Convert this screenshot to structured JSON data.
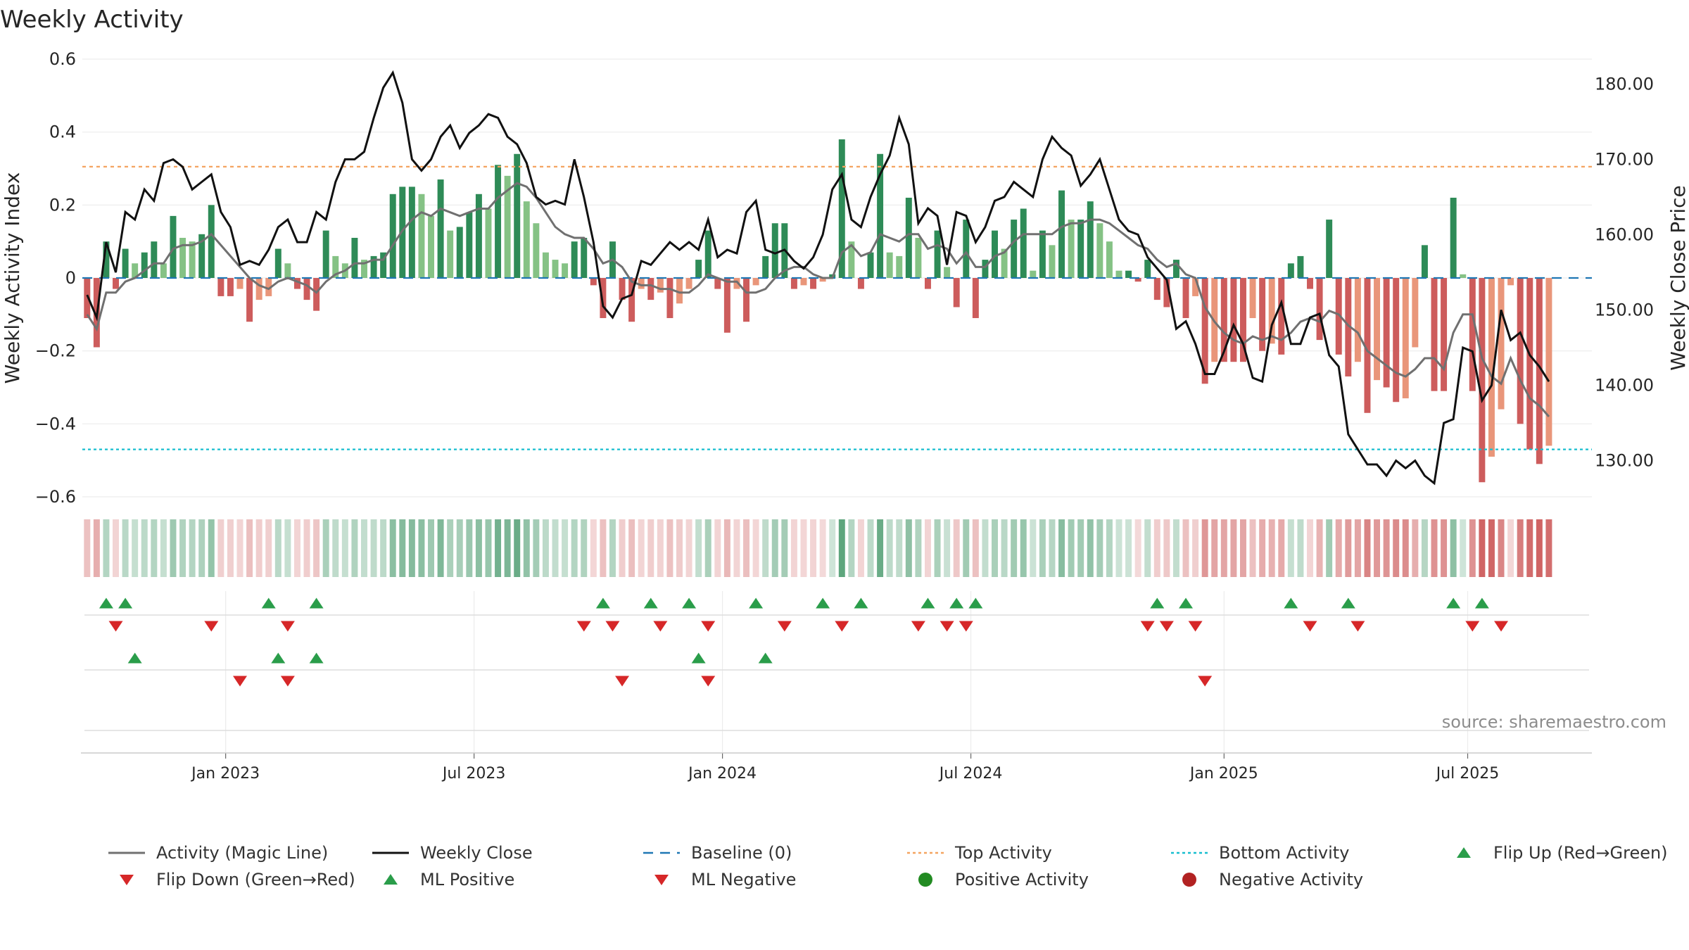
{
  "title": "Weekly Activity",
  "source_note": "source: sharemaestro.com",
  "colors": {
    "pos_strong": "#2e8b57",
    "pos_light": "#85c285",
    "neg_strong": "#cd5c5c",
    "neg_light": "#e9967a",
    "magic": "#707070",
    "close": "#111111",
    "baseline": "#1f77b4",
    "top": "#f4a460",
    "bottom": "#17becf",
    "flip_up": "#2a9d4a",
    "flip_down": "#d62728",
    "ml_pos": "#2a9d4a",
    "ml_neg": "#d62728",
    "pos_dot": "#228b22",
    "neg_dot": "#b22222"
  },
  "legend": [
    {
      "key": "magic",
      "label": "Activity (Magic Line)"
    },
    {
      "key": "close",
      "label": "Weekly Close"
    },
    {
      "key": "baseline",
      "label": "Baseline (0)"
    },
    {
      "key": "top",
      "label": "Top Activity"
    },
    {
      "key": "bottom",
      "label": "Bottom Activity"
    },
    {
      "key": "flip_up",
      "label": "Flip Up (Red→Green)"
    },
    {
      "key": "flip_down",
      "label": "Flip Down (Green→Red)"
    },
    {
      "key": "ml_pos",
      "label": "ML Positive"
    },
    {
      "key": "ml_neg",
      "label": "ML Negative"
    },
    {
      "key": "pos_dot",
      "label": "Positive Activity"
    },
    {
      "key": "neg_dot",
      "label": "Negative Activity"
    }
  ],
  "chart_data": {
    "type": "bar",
    "title": "Weekly Activity",
    "ylabel": "Weekly Activity Index",
    "y2label": "Weekly Close Price",
    "ylim": [
      -0.6,
      0.6
    ],
    "yticks": [
      0.6,
      0.4,
      0.2,
      0,
      -0.2,
      -0.4,
      -0.6
    ],
    "ytick_labels": [
      "0.6",
      "0.4",
      "0.2",
      "0",
      "−0.2",
      "−0.4",
      "−0.6"
    ],
    "y2lim": [
      125.2,
      183.3
    ],
    "y2ticks": [
      180,
      170,
      160,
      150,
      140,
      130
    ],
    "y2tick_labels": [
      "180.00",
      "170.00",
      "160.00",
      "150.00",
      "140.00",
      "130.00"
    ],
    "top_activity": 0.305,
    "bottom_activity": -0.47,
    "baseline": 0,
    "x_range_weeks": [
      0,
      157
    ],
    "month_ticks": [
      {
        "week": 14.5,
        "label": "Jan 2023"
      },
      {
        "week": 40.5,
        "label": "Jul 2023"
      },
      {
        "week": 66.5,
        "label": "Jan 2024"
      },
      {
        "week": 92.5,
        "label": "Jul 2024"
      },
      {
        "week": 119,
        "label": "Jan 2025"
      },
      {
        "week": 144.5,
        "label": "Jul 2025"
      }
    ],
    "activity": [
      -0.11,
      -0.19,
      0.1,
      -0.03,
      0.08,
      0.04,
      0.07,
      0.1,
      0.04,
      0.17,
      0.11,
      0.1,
      0.12,
      0.2,
      -0.05,
      -0.05,
      -0.03,
      -0.12,
      -0.06,
      -0.05,
      0.08,
      0.04,
      -0.03,
      -0.06,
      -0.09,
      0.13,
      0.06,
      0.04,
      0.11,
      0.05,
      0.06,
      0.07,
      0.23,
      0.25,
      0.25,
      0.23,
      0.17,
      0.27,
      0.13,
      0.14,
      0.18,
      0.23,
      0.19,
      0.31,
      0.28,
      0.34,
      0.21,
      0.15,
      0.07,
      0.05,
      0.04,
      0.1,
      0.11,
      -0.02,
      -0.11,
      0.1,
      -0.06,
      -0.12,
      -0.03,
      -0.06,
      -0.04,
      -0.11,
      -0.07,
      -0.03,
      0.05,
      0.13,
      -0.03,
      -0.15,
      -0.03,
      -0.12,
      -0.02,
      0.06,
      0.15,
      0.15,
      -0.03,
      -0.02,
      -0.03,
      -0.01,
      0.01,
      0.38,
      0.1,
      -0.03,
      0.07,
      0.34,
      0.07,
      0.06,
      0.22,
      0.11,
      -0.03,
      0.13,
      0.03,
      -0.08,
      0.16,
      -0.11,
      0.05,
      0.13,
      0.08,
      0.16,
      0.19,
      0.02,
      0.13,
      0.09,
      0.24,
      0.16,
      0.16,
      0.21,
      0.15,
      0.1,
      0.02,
      0.02,
      -0.01,
      0.05,
      -0.06,
      -0.08,
      0.05,
      -0.11,
      -0.05,
      -0.29,
      -0.23,
      -0.23,
      -0.23,
      -0.23,
      -0.11,
      -0.2,
      -0.18,
      -0.21,
      0.04,
      0.06,
      -0.03,
      -0.17,
      0.16,
      -0.21,
      -0.27,
      -0.23,
      -0.37,
      -0.28,
      -0.3,
      -0.34,
      -0.33,
      -0.19,
      0.09,
      -0.31,
      -0.31,
      0.22,
      0.01,
      -0.31,
      -0.56,
      -0.49,
      -0.36,
      -0.02,
      -0.4,
      -0.47,
      -0.51,
      -0.46
    ],
    "magic_line": [
      -0.1,
      -0.14,
      -0.04,
      -0.04,
      -0.01,
      0.0,
      0.02,
      0.04,
      0.04,
      0.08,
      0.09,
      0.09,
      0.1,
      0.12,
      0.09,
      0.06,
      0.03,
      0.0,
      -0.02,
      -0.03,
      -0.01,
      0.0,
      -0.01,
      -0.02,
      -0.04,
      -0.01,
      0.01,
      0.02,
      0.04,
      0.04,
      0.05,
      0.05,
      0.09,
      0.13,
      0.16,
      0.18,
      0.17,
      0.19,
      0.18,
      0.17,
      0.18,
      0.19,
      0.19,
      0.22,
      0.24,
      0.26,
      0.25,
      0.22,
      0.18,
      0.14,
      0.12,
      0.11,
      0.11,
      0.08,
      0.04,
      0.05,
      0.03,
      -0.01,
      -0.02,
      -0.02,
      -0.03,
      -0.03,
      -0.04,
      -0.04,
      -0.02,
      0.01,
      0.0,
      -0.01,
      -0.01,
      -0.04,
      -0.04,
      -0.03,
      0.0,
      0.02,
      0.03,
      0.03,
      0.01,
      0.0,
      0.0,
      0.07,
      0.09,
      0.06,
      0.07,
      0.12,
      0.11,
      0.1,
      0.12,
      0.12,
      0.08,
      0.09,
      0.08,
      0.04,
      0.07,
      0.03,
      0.03,
      0.06,
      0.07,
      0.1,
      0.12,
      0.12,
      0.12,
      0.12,
      0.14,
      0.15,
      0.15,
      0.16,
      0.16,
      0.15,
      0.13,
      0.11,
      0.09,
      0.08,
      0.05,
      0.03,
      0.04,
      0.01,
      0.0,
      -0.08,
      -0.12,
      -0.15,
      -0.17,
      -0.18,
      -0.16,
      -0.17,
      -0.16,
      -0.17,
      -0.15,
      -0.12,
      -0.11,
      -0.12,
      -0.09,
      -0.1,
      -0.13,
      -0.15,
      -0.2,
      -0.22,
      -0.24,
      -0.26,
      -0.27,
      -0.25,
      -0.22,
      -0.22,
      -0.25,
      -0.15,
      -0.1,
      -0.1,
      -0.22,
      -0.27,
      -0.29,
      -0.22,
      -0.28,
      -0.33,
      -0.35,
      -0.38
    ],
    "weekly_close": [
      152.0,
      149.0,
      159.0,
      155.0,
      163.0,
      162.0,
      166.0,
      164.5,
      169.5,
      170.0,
      169.0,
      166.0,
      167.0,
      168.0,
      163.0,
      161.0,
      156.0,
      156.5,
      156.0,
      158.0,
      161.0,
      162.0,
      159.0,
      159.0,
      163.0,
      162.0,
      167.0,
      170.0,
      170.0,
      171.0,
      175.5,
      179.5,
      181.5,
      177.5,
      170.0,
      168.5,
      170.0,
      173.0,
      174.5,
      171.5,
      173.5,
      174.5,
      176.0,
      175.5,
      173.0,
      172.0,
      169.5,
      165.0,
      164.0,
      164.5,
      164.0,
      170.0,
      165.0,
      159.0,
      150.5,
      149.0,
      151.5,
      152.0,
      156.5,
      156.0,
      157.5,
      159.0,
      158.0,
      159.0,
      158.0,
      162.0,
      157.0,
      158.0,
      157.5,
      163.0,
      164.5,
      158.0,
      157.5,
      158.0,
      156.5,
      155.5,
      157.0,
      160.0,
      166.0,
      168.0,
      162.0,
      161.0,
      165.0,
      168.0,
      170.5,
      175.5,
      172.0,
      161.5,
      163.5,
      162.5,
      156.0,
      163.0,
      162.5,
      159.0,
      161.0,
      164.5,
      165.0,
      167.0,
      166.0,
      165.0,
      170.0,
      173.0,
      171.5,
      170.5,
      166.5,
      168.0,
      170.0,
      166.0,
      162.0,
      160.5,
      160.0,
      157.0,
      155.5,
      154.0,
      147.5,
      148.5,
      145.5,
      141.5,
      141.5,
      144.5,
      148.0,
      145.5,
      141.0,
      140.5,
      148.0,
      151.0,
      145.5,
      145.5,
      149.0,
      149.5,
      144.0,
      142.5,
      133.5,
      131.5,
      129.5,
      129.5,
      128.0,
      130.0,
      129.0,
      130.0,
      128.0,
      127.0,
      135.0,
      135.5,
      145.0,
      144.5,
      138.0,
      140.0,
      150.0,
      146.0,
      147.0,
      144.0,
      142.5,
      140.5
    ],
    "flip_up": [
      2,
      4,
      19,
      24,
      54,
      59,
      63,
      70,
      77,
      81,
      88,
      91,
      93,
      112,
      115,
      126,
      132,
      143,
      146
    ],
    "flip_down": [
      3,
      13,
      21,
      52,
      55,
      60,
      65,
      73,
      79,
      87,
      90,
      92,
      111,
      113,
      116,
      128,
      133,
      145,
      148
    ],
    "ml_positive": [
      5,
      20,
      24,
      64,
      71
    ],
    "ml_negative": [
      16,
      21,
      56,
      65,
      117
    ],
    "positive_activity": [],
    "negative_activity": []
  }
}
